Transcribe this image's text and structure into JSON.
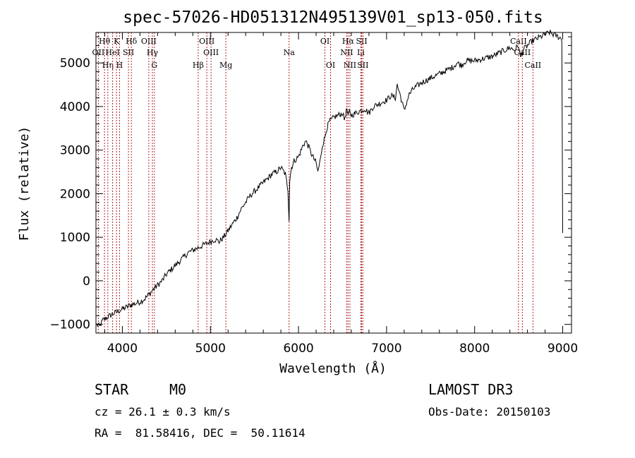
{
  "chart_data": {
    "type": "line",
    "title": "spec-57026-HD051312N495139V01_sp13-050.fits",
    "xlabel": "Wavelength (Å)",
    "ylabel": "Flux (relative)",
    "xlim": [
      3700,
      9100
    ],
    "ylim": [
      -1200,
      5700
    ],
    "x_ticks": [
      4000,
      5000,
      6000,
      7000,
      8000,
      9000
    ],
    "x_tick_labels": [
      "4000",
      "5000",
      "6000",
      "7000",
      "8000",
      "9000"
    ],
    "y_ticks": [
      -1000,
      0,
      1000,
      2000,
      3000,
      4000,
      5000
    ],
    "y_tick_labels": [
      "−1000",
      "0",
      "1000",
      "2000",
      "3000",
      "4000",
      "5000"
    ],
    "grid": false,
    "series": [
      {
        "name": "spectrum",
        "x": [
          3710,
          3740,
          3780,
          3820,
          3860,
          3900,
          3950,
          4000,
          4050,
          4100,
          4150,
          4200,
          4250,
          4300,
          4350,
          4400,
          4450,
          4500,
          4550,
          4600,
          4650,
          4700,
          4750,
          4800,
          4850,
          4900,
          4950,
          5000,
          5050,
          5100,
          5150,
          5200,
          5250,
          5300,
          5350,
          5400,
          5450,
          5500,
          5550,
          5600,
          5650,
          5700,
          5750,
          5800,
          5850,
          5880,
          5893,
          5900,
          5920,
          5950,
          6000,
          6050,
          6080,
          6100,
          6150,
          6200,
          6220,
          6250,
          6270,
          6300,
          6320,
          6350,
          6380,
          6400,
          6450,
          6500,
          6520,
          6550,
          6563,
          6580,
          6600,
          6650,
          6700,
          6750,
          6800,
          6850,
          6900,
          6950,
          7000,
          7050,
          7100,
          7120,
          7150,
          7200,
          7250,
          7300,
          7400,
          7500,
          7600,
          7700,
          7750,
          7800,
          7850,
          7900,
          8000,
          8100,
          8200,
          8300,
          8400,
          8450,
          8500,
          8520,
          8550,
          8600,
          8650,
          8700,
          8750,
          8800,
          8850,
          8900,
          8950,
          8990,
          9000
        ],
        "y": [
          -1000,
          -1050,
          -900,
          -850,
          -800,
          -750,
          -700,
          -650,
          -600,
          -550,
          -520,
          -480,
          -420,
          -320,
          -200,
          -100,
          0,
          150,
          250,
          350,
          450,
          550,
          650,
          700,
          750,
          800,
          850,
          900,
          950,
          900,
          1000,
          1150,
          1300,
          1450,
          1650,
          1800,
          1950,
          2050,
          2150,
          2250,
          2350,
          2450,
          2500,
          2600,
          2450,
          2100,
          1400,
          2300,
          2600,
          2750,
          2850,
          3100,
          3200,
          3150,
          2900,
          2700,
          2500,
          2800,
          3100,
          3300,
          3500,
          3650,
          3700,
          3750,
          3800,
          3850,
          3700,
          3950,
          3750,
          3900,
          3800,
          3850,
          3900,
          3950,
          3850,
          4000,
          4050,
          4100,
          4150,
          4250,
          4200,
          4500,
          4300,
          3900,
          4250,
          4400,
          4550,
          4650,
          4750,
          4850,
          4900,
          5000,
          4950,
          5050,
          5050,
          5100,
          5150,
          5250,
          5350,
          5300,
          5400,
          5100,
          5300,
          5400,
          5500,
          5550,
          5600,
          5650,
          5700,
          5650,
          5600,
          5550,
          1100
        ]
      }
    ],
    "line_markers": [
      {
        "label": "Hθ",
        "x": 3797,
        "row": 1
      },
      {
        "label": "OII",
        "x": 3727,
        "row": 2
      },
      {
        "label": "Hη",
        "x": 3835,
        "row": 3
      },
      {
        "label": "HeI",
        "x": 3889,
        "row": 2
      },
      {
        "label": "K",
        "x": 3934,
        "row": 1
      },
      {
        "label": "H",
        "x": 3968,
        "row": 3
      },
      {
        "label": "SII",
        "x": 4069,
        "row": 2
      },
      {
        "label": "Hδ",
        "x": 4102,
        "row": 1
      },
      {
        "label": "OIII",
        "x": 4300,
        "row": 1
      },
      {
        "label": "Hγ",
        "x": 4341,
        "row": 2
      },
      {
        "label": "G",
        "x": 4363,
        "row": 3
      },
      {
        "label": "Hβ",
        "x": 4861,
        "row": 3
      },
      {
        "label": "OIII",
        "x": 4959,
        "row": 1
      },
      {
        "label": "OIII",
        "x": 5007,
        "row": 2
      },
      {
        "label": "Mg",
        "x": 5175,
        "row": 3
      },
      {
        "label": "Na",
        "x": 5893,
        "row": 2
      },
      {
        "label": "OI",
        "x": 6300,
        "row": 1
      },
      {
        "label": "OI",
        "x": 6364,
        "row": 3
      },
      {
        "label": "Hα",
        "x": 6563,
        "row": 1
      },
      {
        "label": "NII",
        "x": 6548,
        "row": 2
      },
      {
        "label": "NII",
        "x": 6584,
        "row": 3
      },
      {
        "label": "SII",
        "x": 6717,
        "row": 1
      },
      {
        "label": "Li",
        "x": 6708,
        "row": 2
      },
      {
        "label": "SII",
        "x": 6731,
        "row": 3
      },
      {
        "label": "CaII",
        "x": 8498,
        "row": 1
      },
      {
        "label": "CaII",
        "x": 8542,
        "row": 2
      },
      {
        "label": "CaII",
        "x": 8662,
        "row": 3
      }
    ],
    "marker_color": "#b22222",
    "line_color": "#000000"
  },
  "info": {
    "object_class": "STAR",
    "subclass": "M0",
    "survey": "LAMOST DR3",
    "cz": "cz = 26.1 ± 0.3 km/s",
    "obs_date": "Obs-Date: 20150103",
    "radec": "RA =  81.58416, DEC =  50.11614"
  }
}
